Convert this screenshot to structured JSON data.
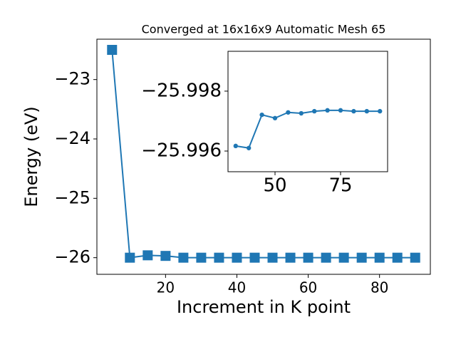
{
  "chart_data": [
    {
      "type": "line",
      "title": "Converged at 16x16x9 Automatic Mesh 65",
      "x_label": "Increment in K point",
      "y_label": "Energy (eV)",
      "x": [
        5,
        10,
        15,
        20,
        25,
        30,
        35,
        40,
        45,
        50,
        55,
        60,
        65,
        70,
        75,
        80,
        85,
        90
      ],
      "series": [
        {
          "color": "#1f77b4",
          "marker": "square",
          "values": [
            -22.5,
            -26.0,
            -25.96,
            -25.97,
            -26.0,
            -26.0,
            -26.0,
            -26.0,
            -26.0,
            -26.0,
            -26.0,
            -26.0,
            -26.0,
            -26.0,
            -26.0,
            -26.0,
            -26.0,
            -26.0
          ]
        }
      ],
      "xlim": [
        0.75,
        94.25
      ],
      "xticks": [
        20,
        40,
        60,
        80
      ],
      "ylim": [
        -26.28,
        -22.32
      ],
      "yticks": [
        {
          "value": -26,
          "label": "−26"
        },
        {
          "value": -25,
          "label": "−25"
        },
        {
          "value": -24,
          "label": "−24"
        },
        {
          "value": -23,
          "label": "−23"
        }
      ]
    },
    {
      "type": "line",
      "x": [
        35,
        40,
        45,
        50,
        55,
        60,
        65,
        70,
        75,
        80,
        85,
        90
      ],
      "series": [
        {
          "color": "#1f77b4",
          "marker": "circle",
          "values": [
            -25.99617,
            -25.9961,
            -25.99721,
            -25.9971,
            -25.99729,
            -25.99726,
            -25.99733,
            -25.99736,
            -25.99736,
            -25.99733,
            -25.99733,
            -25.99733
          ]
        }
      ],
      "xlim": [
        32.07,
        92.93
      ],
      "xticks": [
        50,
        75
      ],
      "ylim": [
        -25.99531,
        -25.99933
      ],
      "yticks": [
        {
          "value": -25.998,
          "label": "−25.998"
        },
        {
          "value": -25.996,
          "label": "−25.996"
        }
      ]
    }
  ]
}
